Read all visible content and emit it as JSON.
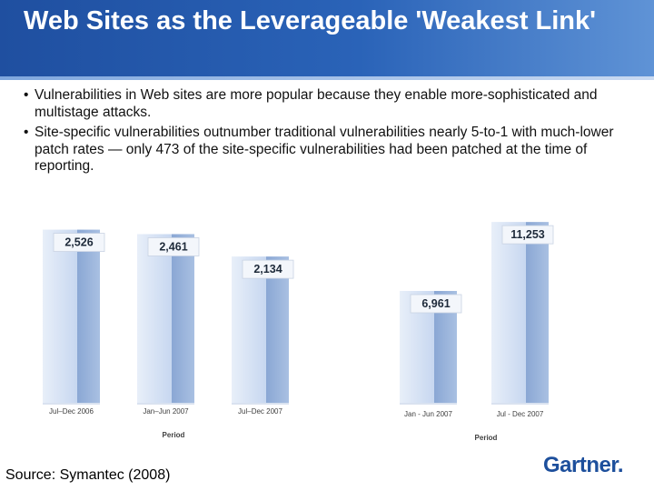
{
  "slide": {
    "title": "Web Sites as the Leverageable 'Weakest Link'",
    "bullets": [
      "Vulnerabilities in Web sites are more popular because they enable more-sophisticated and multistage attacks.",
      "Site-specific vulnerabilities outnumber traditional vulnerabilities nearly 5-to-1 with much-lower patch rates — only 473 of the site-specific vulnerabilities had been patched at the time of reporting."
    ],
    "bullet_glyph": "•",
    "source": "Source: Symantec (2008)",
    "logo": "Gartner."
  },
  "colors": {
    "title_bar": "#2a63b8",
    "bar_front": "#c7d7f0",
    "bar_side": "#8aa7d4",
    "bar_label_bg": "#f3f6fb",
    "logo": "#1d4f9c"
  },
  "chart_data": [
    {
      "type": "bar",
      "title": "",
      "xlabel": "Period",
      "ylabel": "",
      "categories": [
        "Jul–Dec 2006",
        "Jan–Jun 2007",
        "Jul–Dec 2007"
      ],
      "values": [
        2526,
        2461,
        2134
      ],
      "value_labels": [
        "2,526",
        "2,461",
        "2,134"
      ],
      "ylim": [
        0,
        2600
      ]
    },
    {
      "type": "bar",
      "title": "",
      "xlabel": "Period",
      "ylabel": "",
      "categories": [
        "Jan - Jun 2007",
        "Jul - Dec 2007"
      ],
      "values": [
        6961,
        11253
      ],
      "value_labels": [
        "6,961",
        "11,253"
      ],
      "ylim": [
        0,
        11600
      ]
    }
  ]
}
